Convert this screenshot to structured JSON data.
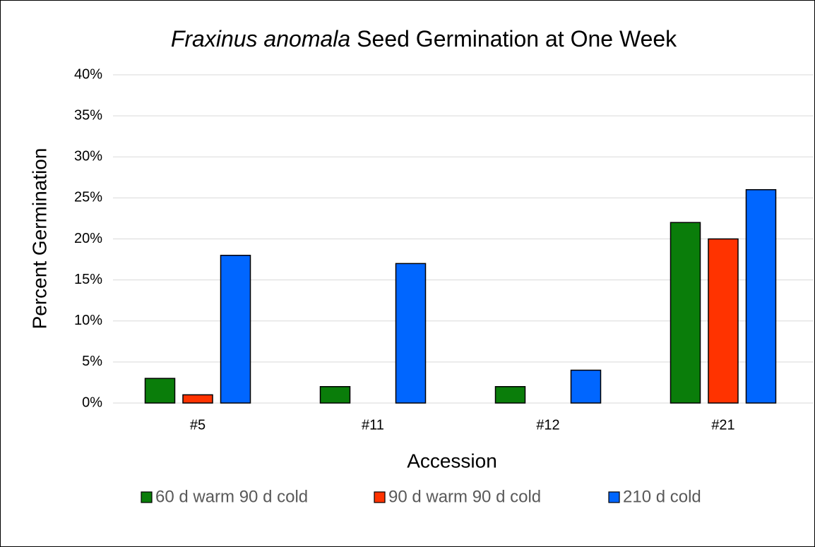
{
  "chart_data": {
    "type": "bar",
    "title": [
      "Fraxinus anomala",
      "Seed Germination at One Week"
    ],
    "x_label": "Accession",
    "y_label": "Percent Germination",
    "categories": [
      "#5",
      "#11",
      "#12",
      "#21"
    ],
    "series": [
      {
        "name": "60 d warm 90 d cold",
        "color": "#0a7d0a",
        "values": [
          3,
          2,
          2,
          22
        ]
      },
      {
        "name": "90 d warm 90 d cold",
        "color": "#ff3300",
        "values": [
          1,
          0,
          0,
          20
        ]
      },
      {
        "name": "210 d cold",
        "color": "#0066ff",
        "values": [
          18,
          17,
          4,
          26
        ]
      }
    ],
    "ylim": [
      0,
      40
    ],
    "yticks": [
      {
        "value": 0,
        "label": "0%"
      },
      {
        "value": 5,
        "label": "5%"
      },
      {
        "value": 10,
        "label": "10%"
      },
      {
        "value": 15,
        "label": "15%"
      },
      {
        "value": 20,
        "label": "20%"
      },
      {
        "value": 25,
        "label": "25%"
      },
      {
        "value": 30,
        "label": "30%"
      },
      {
        "value": 35,
        "label": "35%"
      },
      {
        "value": 40,
        "label": "40%"
      }
    ],
    "grid": true,
    "legend": "bottom"
  }
}
